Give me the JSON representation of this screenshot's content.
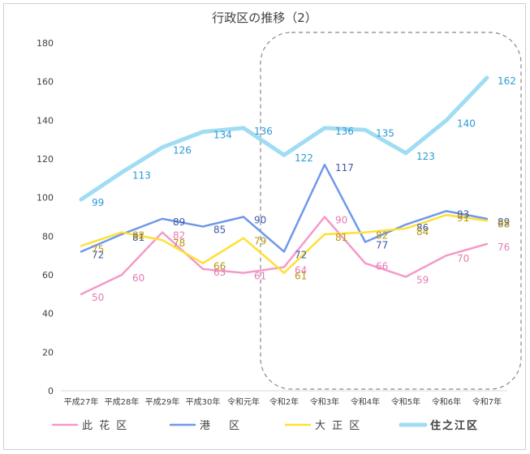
{
  "chart_data": {
    "type": "line",
    "title": "行政区の推移（2）",
    "categories": [
      "平成27年",
      "平成28年",
      "平成29年",
      "平成30年",
      "令和元年",
      "令和2年",
      "令和3年",
      "令和4年",
      "令和5年",
      "令和6年",
      "令和7年"
    ],
    "ylim": [
      0,
      180
    ],
    "yticks": [
      "0",
      "20",
      "40",
      "60",
      "80",
      "100",
      "120",
      "140",
      "160",
      "180"
    ],
    "grid": false,
    "legend_position": "bottom",
    "series": [
      {
        "name": "此 花 区",
        "color": "#f49ac8",
        "label_color": "#e67ab4",
        "values": [
          50,
          60,
          82,
          63,
          61,
          64,
          90,
          66,
          59,
          70,
          76
        ]
      },
      {
        "name": "港　 区",
        "color": "#6f98ec",
        "label_color": "#3d5aa8",
        "values": [
          72,
          81,
          89,
          85,
          90,
          72,
          117,
          77,
          86,
          93,
          89
        ]
      },
      {
        "name": "大 正 区",
        "color": "#ffe033",
        "label_color": "#b8960e",
        "values": [
          75,
          82,
          78,
          66,
          79,
          61,
          81,
          82,
          84,
          91,
          88
        ]
      },
      {
        "name": "住之江区",
        "color": "#a0ddf3",
        "label_color": "#2b9bd6",
        "values": [
          99,
          113,
          126,
          134,
          136,
          122,
          136,
          135,
          123,
          140,
          162
        ],
        "legend_color": "#e00000"
      }
    ]
  }
}
